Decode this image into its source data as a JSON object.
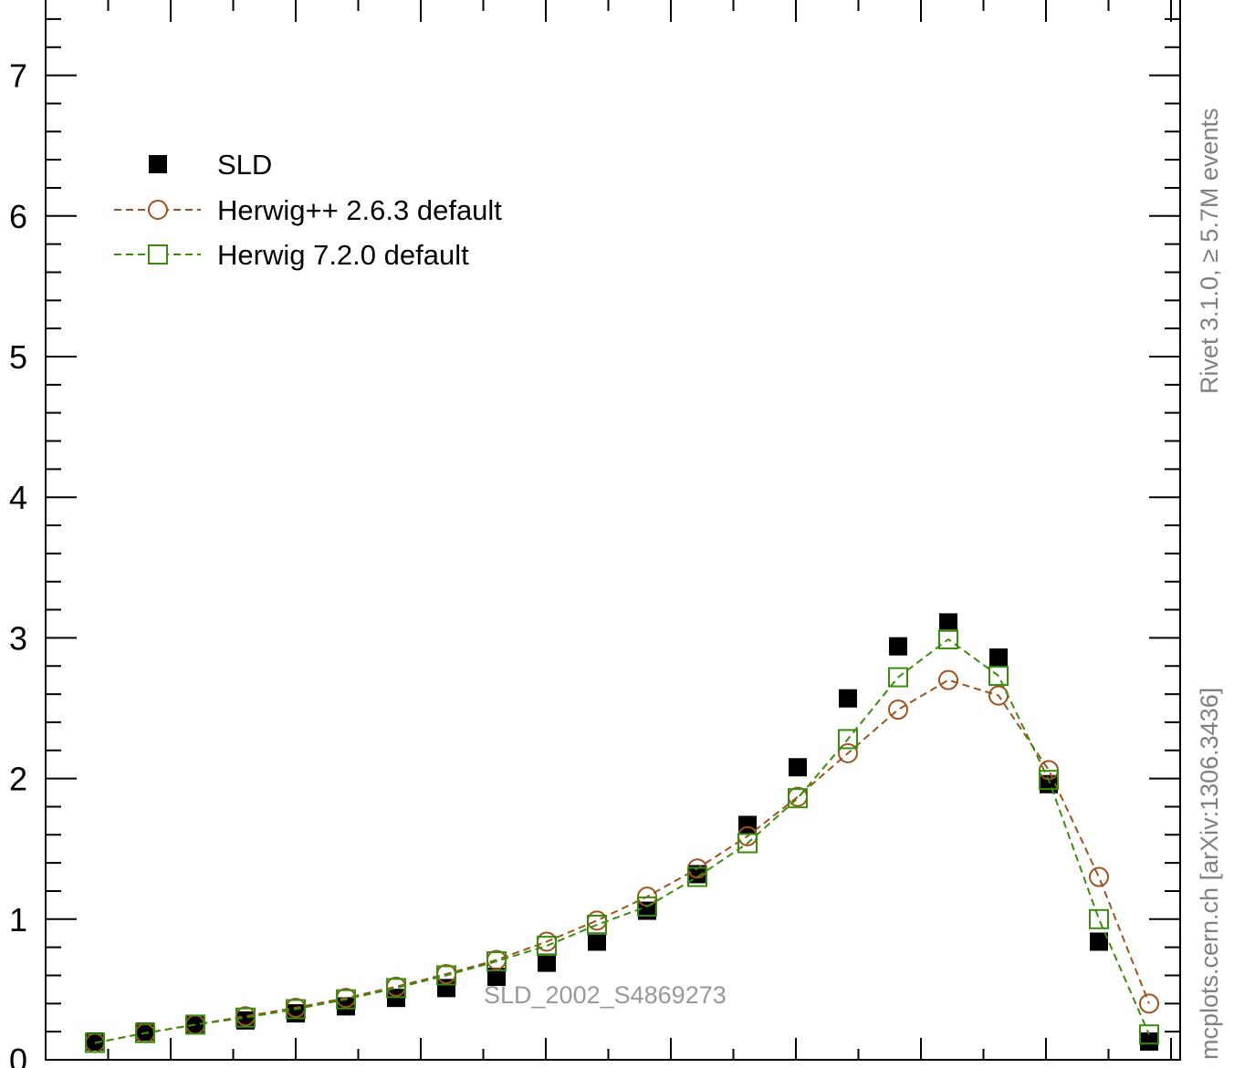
{
  "chart_data": {
    "type": "scatter",
    "title": "",
    "xlabel": "",
    "ylabel": "",
    "ylim": [
      0,
      7.5
    ],
    "yticks": [
      0,
      1,
      2,
      3,
      4,
      5,
      6,
      7
    ],
    "grid": false,
    "legend_position": "top-left",
    "x": [
      0.025,
      0.075,
      0.125,
      0.175,
      0.225,
      0.275,
      0.325,
      0.375,
      0.425,
      0.475,
      0.525,
      0.575,
      0.625,
      0.675,
      0.725,
      0.775,
      0.825,
      0.875,
      0.925,
      0.975,
      1.025,
      1.075,
      1.125
    ],
    "series": [
      {
        "name": "SLD",
        "marker": "filled-square",
        "color": "#000000",
        "values": [
          0.13,
          0.2,
          0.25,
          0.28,
          0.33,
          0.38,
          0.44,
          0.51,
          0.59,
          0.69,
          0.84,
          1.06,
          1.32,
          1.67,
          2.08,
          2.57,
          2.94,
          3.11,
          2.86,
          1.96,
          0.84,
          0.13,
          null
        ]
      },
      {
        "name": "Herwig++ 2.6.3 default",
        "marker": "open-circle",
        "color": "#a0521c",
        "values": [
          0.12,
          0.19,
          0.25,
          0.31,
          0.37,
          0.44,
          0.52,
          0.61,
          0.71,
          0.84,
          0.99,
          1.16,
          1.36,
          1.59,
          1.87,
          2.18,
          2.49,
          2.7,
          2.59,
          2.06,
          1.3,
          0.4,
          null
        ]
      },
      {
        "name": "Herwig 7.2.0 default",
        "marker": "open-square",
        "color": "#3a8c0c",
        "values": [
          0.12,
          0.19,
          0.25,
          0.3,
          0.36,
          0.43,
          0.51,
          0.6,
          0.7,
          0.81,
          0.96,
          1.09,
          1.3,
          1.54,
          1.86,
          2.28,
          2.72,
          2.99,
          2.73,
          1.99,
          1.0,
          0.18,
          null
        ]
      }
    ],
    "annotation": "SLD_2002_S4869273",
    "side_labels": [
      "Rivet 3.1.0, ≥ 5.7M events",
      "mcplots.cern.ch [arXiv:1306.3436]"
    ]
  }
}
